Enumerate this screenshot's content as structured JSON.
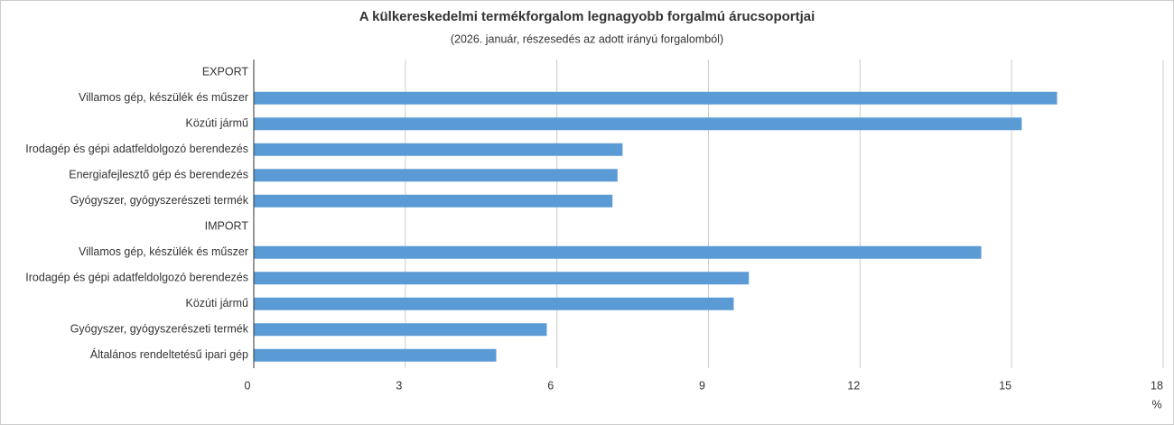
{
  "chart_data": {
    "type": "barh",
    "title": "A külkereskedelmi termékforgalom legnagyobb forgalmú árucsoportjai",
    "subtitle": "(2026. január, részesedés az adott irányú forgalomból)",
    "x_label": "%",
    "categories": [
      "EXPORT",
      "Villamos gép, készülék és műszer",
      "Közúti jármű",
      "Irodagép és gépi adatfeldolgozó berendezés",
      "Energiafejlesztő gép és berendezés",
      "Gyógyszer, gyógyszerészeti termék",
      "IMPORT",
      "Villamos gép, készülék és műszer",
      "Irodagép és gépi adatfeldolgozó berendezés",
      "Közúti jármű",
      "Gyógyszer, gyógyszerészeti termék",
      "Általános rendeltetésű ipari gép"
    ],
    "values": [
      null,
      15.9,
      15.2,
      7.3,
      7.2,
      7.1,
      null,
      14.4,
      9.8,
      9.5,
      5.8,
      4.8
    ],
    "color": "#5b9bd5",
    "xlim": [
      0,
      18
    ],
    "xticks": [
      0,
      3,
      6,
      9,
      12,
      15,
      18
    ],
    "grid": true
  }
}
